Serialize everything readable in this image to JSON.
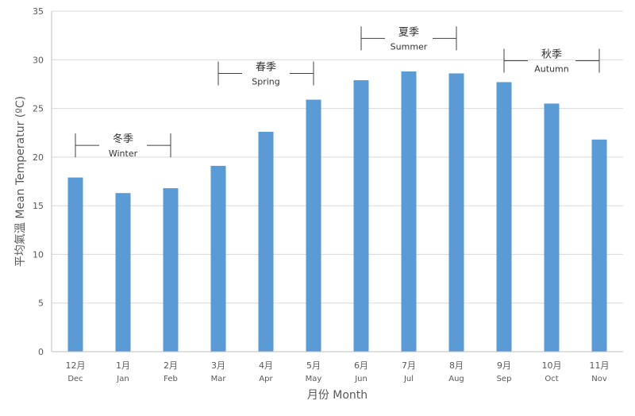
{
  "chart_data": {
    "type": "bar",
    "categories_zh": [
      "12月",
      "1月",
      "2月",
      "3月",
      "4月",
      "5月",
      "6月",
      "7月",
      "8月",
      "9月",
      "10月",
      "11月"
    ],
    "categories_en": [
      "Dec",
      "Jan",
      "Feb",
      "Mar",
      "Apr",
      "May",
      "Jun",
      "Jul",
      "Aug",
      "Sep",
      "Oct",
      "Nov"
    ],
    "values": [
      17.9,
      16.3,
      16.8,
      19.1,
      22.6,
      25.9,
      27.9,
      28.8,
      28.6,
      27.7,
      25.5,
      21.8
    ],
    "xlabel": "月份 Month",
    "ylabel": "平均氣溫 Mean Temperatur (ºC)",
    "ylim": [
      0,
      35
    ],
    "yticks": [
      0,
      5,
      10,
      15,
      20,
      25,
      30,
      35
    ],
    "grid": true,
    "bar_color": "#5b9bd5",
    "annotations": [
      {
        "zh": "冬季",
        "en": "Winter",
        "start": 0,
        "end": 2,
        "at": 21.2
      },
      {
        "zh": "春季",
        "en": "Spring",
        "start": 3,
        "end": 5,
        "at": 28.6
      },
      {
        "zh": "夏季",
        "en": "Summer",
        "start": 6,
        "end": 8,
        "at": 32.2
      },
      {
        "zh": "秋季",
        "en": "Autumn",
        "start": 9,
        "end": 11,
        "at": 29.9
      }
    ]
  }
}
